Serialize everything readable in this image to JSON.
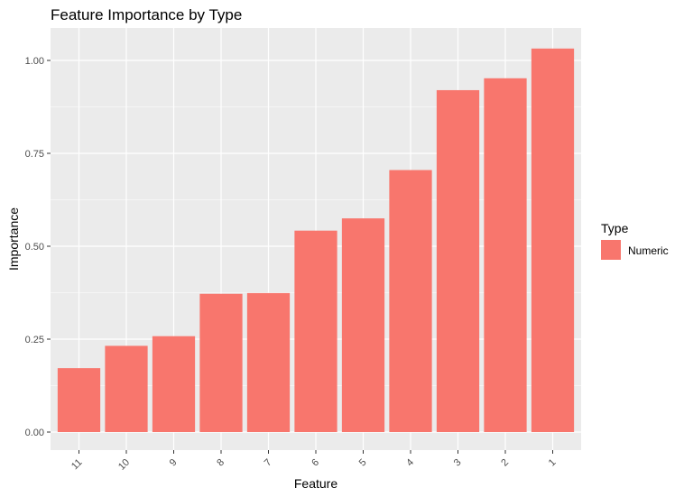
{
  "chart_data": {
    "type": "bar",
    "title": "Feature Importance by Type",
    "xlabel": "Feature",
    "ylabel": "Importance",
    "categories": [
      "11",
      "10",
      "9",
      "8",
      "7",
      "6",
      "5",
      "4",
      "3",
      "2",
      "1"
    ],
    "series": [
      {
        "name": "Numeric",
        "values": [
          0.172,
          0.232,
          0.258,
          0.372,
          0.374,
          0.542,
          0.575,
          0.705,
          0.92,
          0.952,
          1.032
        ]
      }
    ],
    "y_ticks": [
      "0.00",
      "0.25",
      "0.50",
      "0.75",
      "1.00"
    ],
    "ylim": [
      -0.05,
      1.085
    ],
    "grid": true,
    "legend": {
      "title": "Type",
      "position": "right"
    },
    "colors": {
      "bar": "#F8766D",
      "panel": "#EBEBEB",
      "grid": "#FFFFFF",
      "tick": "#4D4D4D"
    }
  }
}
